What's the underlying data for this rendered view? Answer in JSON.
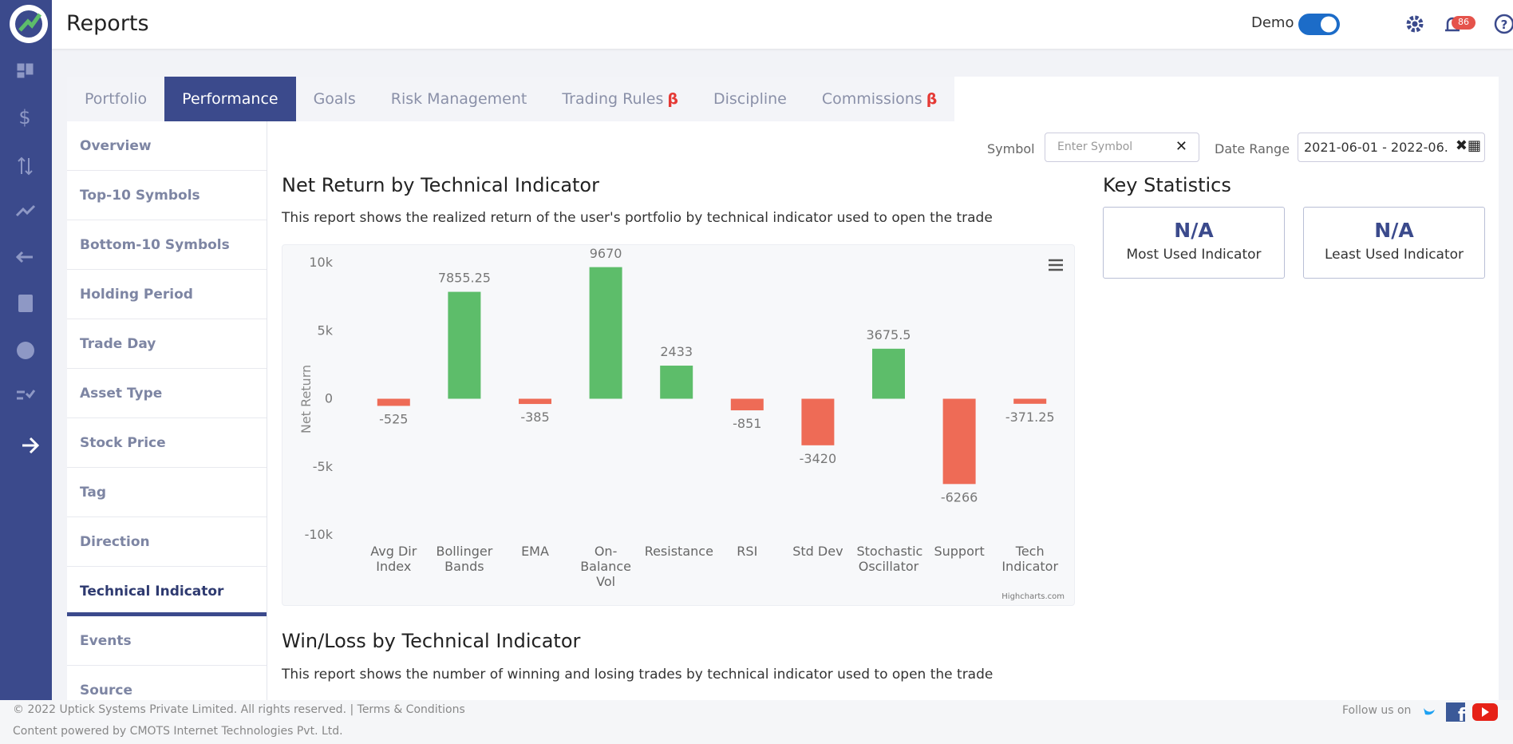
{
  "header": {
    "title": "Reports",
    "mode": "Demo",
    "notifications": "86"
  },
  "tabs": [
    {
      "label": "Portfolio"
    },
    {
      "label": "Performance"
    },
    {
      "label": "Goals"
    },
    {
      "label": "Risk Management"
    },
    {
      "label": "Trading Rules",
      "badge": "β"
    },
    {
      "label": "Discipline"
    },
    {
      "label": "Commissions",
      "badge": "β"
    }
  ],
  "active_tab": 1,
  "sidebar": [
    "Overview",
    "Top-10 Symbols",
    "Bottom-10 Symbols",
    "Holding Period",
    "Trade Day",
    "Asset Type",
    "Stock Price",
    "Tag",
    "Direction",
    "Technical Indicator",
    "Events",
    "Source"
  ],
  "active_item": 9,
  "filters": {
    "symbol_label": "Symbol",
    "symbol_placeholder": "Enter Symbol",
    "date_label": "Date Range",
    "date_value": "2021-06-01 - 2022-06..."
  },
  "key_statistics": {
    "title": "Key Statistics",
    "stats": [
      {
        "value": "N/A",
        "label": "Most Used Indicator"
      },
      {
        "value": "N/A",
        "label": "Least Used Indicator"
      }
    ]
  },
  "chart_data": {
    "type": "bar",
    "title": "Net Return by Technical Indicator",
    "subtitle": "This report shows the realized return of the user's portfolio by technical indicator used to open the trade",
    "y_label": "Net Return",
    "categories": [
      "Avg Dir Index",
      "Bollinger Bands",
      "EMA",
      "On-Balance Vol",
      "Resistance",
      "RSI",
      "Std Dev",
      "Stochastic Oscillator",
      "Support",
      "Tech Indicator"
    ],
    "values": [
      -525,
      7855.25,
      -385,
      9670,
      2433,
      -851,
      -3420,
      3675.5,
      -6266,
      -371.25
    ],
    "positive_color": "#5dbd6a",
    "negative_color": "#ee6b56",
    "ylim": [
      -10000,
      10000
    ],
    "yticks": [
      {
        "value": -10000,
        "label": "-10k"
      },
      {
        "value": -5000,
        "label": "-5k"
      },
      0,
      {
        "value": 5000,
        "label": "5k"
      },
      {
        "value": 10000,
        "label": "10k"
      }
    ],
    "grid": false,
    "credits": "Highcharts.com"
  },
  "win_loss": {
    "title": "Win/Loss by Technical Indicator",
    "description": "This report shows the number of winning and losing trades by technical indicator used to open the trade"
  },
  "footer": {
    "copyright": "© 2022 Uptick Systems Private Limited. All rights reserved. |",
    "terms": "Terms & Conditions",
    "powered": "Content powered by CMOTS Internet Technologies Pvt. Ltd.",
    "follow": "Follow us on"
  }
}
